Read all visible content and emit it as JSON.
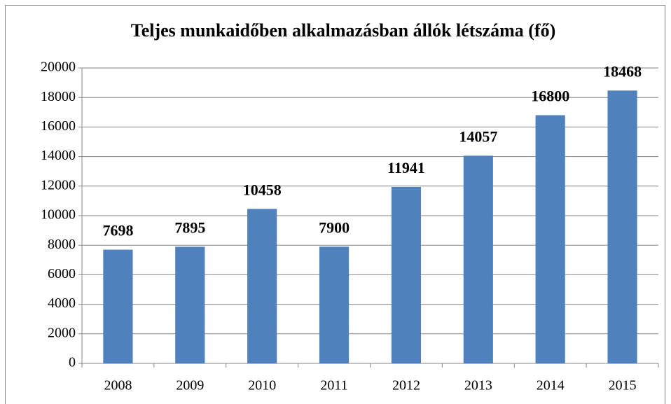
{
  "chart_data": {
    "type": "bar",
    "title": "Teljes munkaidőben alkalmazásban állók létszáma (fő)",
    "categories": [
      "2008",
      "2009",
      "2010",
      "2011",
      "2012",
      "2013",
      "2014",
      "2015"
    ],
    "values": [
      7698,
      7895,
      10458,
      7900,
      11941,
      14057,
      16800,
      18468
    ],
    "color": "#4f81bd",
    "ylim": [
      0,
      20000
    ],
    "yticks": [
      0,
      2000,
      4000,
      6000,
      8000,
      10000,
      12000,
      14000,
      16000,
      18000,
      20000
    ],
    "grid": true,
    "data_labels": true
  }
}
